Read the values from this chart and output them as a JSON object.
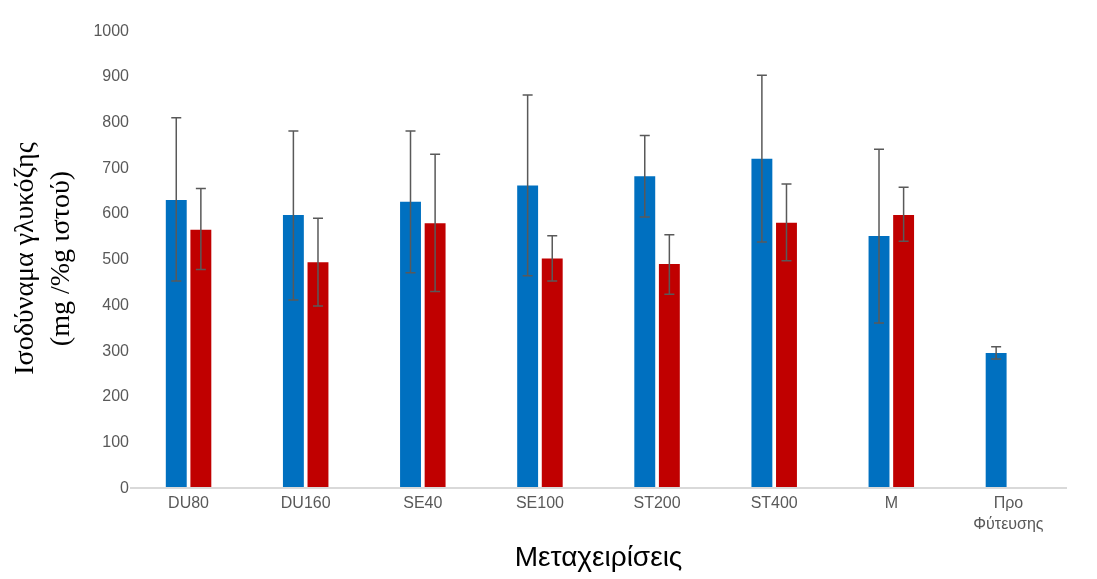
{
  "chart_data": {
    "type": "bar",
    "xlabel": "Μεταχειρίσεις",
    "ylabel": "Ισοδύναμα γλυκόζης\n(mg /%g ιστού)",
    "categories": [
      "DU80",
      "DU160",
      "SE40",
      "SE100",
      "ST200",
      "ST400",
      "M",
      "Προ Φύτευσης"
    ],
    "series": [
      {
        "color": "#0070c0",
        "values": [
          628,
          595,
          624,
          660,
          680,
          718,
          549,
          293
        ],
        "errors": [
          [
            451,
            808
          ],
          [
            409,
            779
          ],
          [
            469,
            779
          ],
          [
            462,
            858
          ],
          [
            591,
            769
          ],
          [
            536,
            901
          ],
          [
            359,
            739
          ],
          [
            280,
            307
          ]
        ]
      },
      {
        "color": "#c00000",
        "values": [
          563,
          492,
          577,
          500,
          488,
          578,
          595,
          null
        ],
        "errors": [
          [
            476,
            653
          ],
          [
            396,
            588
          ],
          [
            428,
            728
          ],
          [
            451,
            550
          ],
          [
            422,
            552
          ],
          [
            495,
            663
          ],
          [
            538,
            656
          ],
          null
        ]
      }
    ],
    "ylim": [
      0,
      1000
    ],
    "yticks": [
      0,
      100,
      200,
      300,
      400,
      500,
      600,
      700,
      800,
      900,
      1000
    ]
  }
}
